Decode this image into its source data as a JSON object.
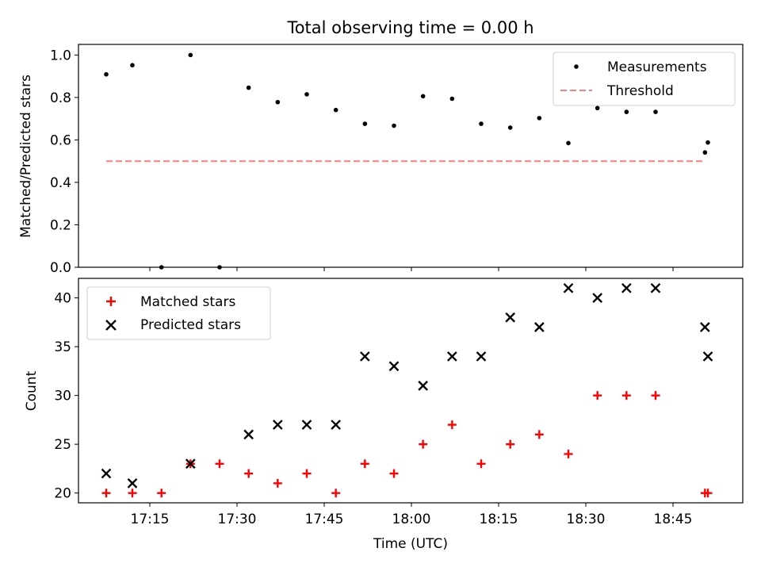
{
  "chart_data": [
    {
      "type": "scatter",
      "title": "Total observing time = 0.00 h",
      "ylabel": "Matched/Predicted stars",
      "ylim": [
        0.0,
        1.05
      ],
      "yticks": [
        "0.0",
        "0.2",
        "0.4",
        "0.6",
        "0.8",
        "1.0"
      ],
      "grid": false,
      "legend_position": "top-right",
      "series": [
        {
          "name": "Measurements",
          "marker": "dot",
          "color": "#000000",
          "points": [
            [
              "17:07:30",
              0.909
            ],
            [
              "17:12:00",
              0.952
            ],
            [
              "17:17:00",
              0.0
            ],
            [
              "17:22:00",
              1.0
            ],
            [
              "17:27:00",
              0.0
            ],
            [
              "17:32:00",
              0.846
            ],
            [
              "17:37:00",
              0.778
            ],
            [
              "17:42:00",
              0.815
            ],
            [
              "17:47:00",
              0.741
            ],
            [
              "17:52:00",
              0.676
            ],
            [
              "17:57:00",
              0.667
            ],
            [
              "18:02:00",
              0.806
            ],
            [
              "18:07:00",
              0.794
            ],
            [
              "18:12:00",
              0.676
            ],
            [
              "18:17:00",
              0.658
            ],
            [
              "18:22:00",
              0.703
            ],
            [
              "18:27:00",
              0.585
            ],
            [
              "18:32:00",
              0.75
            ],
            [
              "18:37:00",
              0.732
            ],
            [
              "18:42:00",
              0.732
            ],
            [
              "18:50:30",
              0.541
            ],
            [
              "18:51:00",
              0.588
            ]
          ]
        },
        {
          "name": "Threshold",
          "marker": "dashed-line",
          "color": "#ff7f7f",
          "points": [
            [
              "17:07:30",
              0.5
            ],
            [
              "18:50:30",
              0.5
            ]
          ]
        }
      ]
    },
    {
      "type": "scatter",
      "xlabel": "Time (UTC)",
      "ylabel": "Count",
      "ylim": [
        19,
        42
      ],
      "yticks": [
        "20",
        "25",
        "30",
        "35",
        "40"
      ],
      "xticks": [
        "17:15",
        "17:30",
        "17:45",
        "18:00",
        "18:15",
        "18:30",
        "18:45"
      ],
      "grid": false,
      "legend_position": "top-left",
      "series": [
        {
          "name": "Matched stars",
          "marker": "plus",
          "color": "#ff0000",
          "points": [
            [
              "17:07:30",
              20
            ],
            [
              "17:12:00",
              20
            ],
            [
              "17:17:00",
              20
            ],
            [
              "17:22:00",
              23
            ],
            [
              "17:27:00",
              23
            ],
            [
              "17:32:00",
              22
            ],
            [
              "17:37:00",
              21
            ],
            [
              "17:42:00",
              22
            ],
            [
              "17:47:00",
              20
            ],
            [
              "17:52:00",
              23
            ],
            [
              "17:57:00",
              22
            ],
            [
              "18:02:00",
              25
            ],
            [
              "18:07:00",
              27
            ],
            [
              "18:12:00",
              23
            ],
            [
              "18:17:00",
              25
            ],
            [
              "18:22:00",
              26
            ],
            [
              "18:27:00",
              24
            ],
            [
              "18:32:00",
              30
            ],
            [
              "18:37:00",
              30
            ],
            [
              "18:42:00",
              30
            ],
            [
              "18:50:30",
              20
            ],
            [
              "18:51:00",
              20
            ]
          ]
        },
        {
          "name": "Predicted stars",
          "marker": "x",
          "color": "#000000",
          "points": [
            [
              "17:07:30",
              22
            ],
            [
              "17:12:00",
              21
            ],
            [
              "17:22:00",
              23
            ],
            [
              "17:32:00",
              26
            ],
            [
              "17:37:00",
              27
            ],
            [
              "17:42:00",
              27
            ],
            [
              "17:47:00",
              27
            ],
            [
              "17:52:00",
              34
            ],
            [
              "17:57:00",
              33
            ],
            [
              "18:02:00",
              31
            ],
            [
              "18:07:00",
              34
            ],
            [
              "18:12:00",
              34
            ],
            [
              "18:17:00",
              38
            ],
            [
              "18:22:00",
              37
            ],
            [
              "18:27:00",
              41
            ],
            [
              "18:32:00",
              40
            ],
            [
              "18:37:00",
              41
            ],
            [
              "18:42:00",
              41
            ],
            [
              "18:50:30",
              37
            ],
            [
              "18:51:00",
              34
            ]
          ]
        }
      ]
    }
  ]
}
